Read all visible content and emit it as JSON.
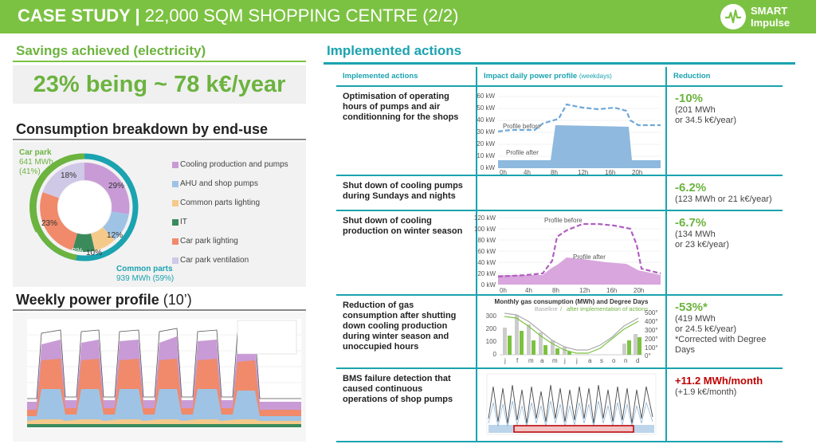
{
  "header": {
    "title_bold": "CASE STUDY |",
    "title_rest": " 22,000 SQM SHOPPING CENTRE (2/2)",
    "logo_line1": "SMART",
    "logo_line2": "Impulse",
    "bar_color": "#7cc242"
  },
  "savings": {
    "title": "Savings achieved (electricity)",
    "value": "23% being ~ 78 k€/year"
  },
  "breakdown": {
    "title": "Consumption breakdown by end-use",
    "carpark_label": "Car park",
    "carpark_value": "641 MWh",
    "carpark_pct": "(41%)",
    "common_label": "Common parts",
    "common_value": "939 MWh (59%)",
    "slice_labels": [
      "29%",
      "12%",
      "10%",
      "8%",
      "23%",
      "18%"
    ],
    "legend": [
      {
        "label": "Cooling production and pumps",
        "color": "#c89bd6"
      },
      {
        "label": "AHU and shop pumps",
        "color": "#9fc3e5"
      },
      {
        "label": "Common parts lighting",
        "color": "#f5c98a"
      },
      {
        "label": "IT",
        "color": "#3a8a5c"
      },
      {
        "label": "Car park lighting",
        "color": "#f08a6a"
      },
      {
        "label": "Car park ventilation",
        "color": "#cfc8e6"
      }
    ]
  },
  "weekly": {
    "title_bold": "Weekly power profile",
    "title_rest": " (10’)"
  },
  "actions": {
    "title": "Implemented actions",
    "col_action": "Implemented actions",
    "col_impact": "Impact daily power profile",
    "col_impact_sub": "(weekdays)",
    "col_reduction": "Reduction",
    "rows": [
      {
        "action": "Optimisation of operating hours of pumps and air conditionning for the shops",
        "pct": "-10%",
        "detail1": "(201 MWh",
        "detail2": "or 34.5 k€/year)",
        "detail3": "",
        "detail4": ""
      },
      {
        "action": "Shut down of cooling pumps during Sundays and nights",
        "pct": "-6.2%",
        "detail1": "(123 MWh or 21 k€/year)",
        "detail2": "",
        "detail3": "",
        "detail4": ""
      },
      {
        "action": "Shut down of cooling production on winter season",
        "pct": "-6.7%",
        "detail1": "(134 MWh",
        "detail2": "or 23 k€/year)",
        "detail3": "",
        "detail4": ""
      },
      {
        "action": "Reduction of gas consumption after shutting down cooling production during winter season and unoccupied hours",
        "pct": "-53%*",
        "detail1": "(419 MWh",
        "detail2": "or 24.5 k€/year)",
        "detail3": "*Corrected with Degree",
        "detail4": "Days"
      },
      {
        "action": "BMS failure detection that caused continuous operations of shop pumps",
        "pct": "+11.2 MWh/month",
        "detail1": "(+1.9 k€/month)",
        "detail2": "",
        "detail3": "",
        "detail4": ""
      }
    ]
  },
  "chart1": {
    "label_before": "Profile before",
    "label_after": "Profile after",
    "y_ticks": [
      "60 kW",
      "50 kW",
      "40 kW",
      "30 kW",
      "20 kW",
      "10 kW",
      "0 kW"
    ],
    "x_ticks": [
      "0h",
      "4h",
      "8h",
      "12h",
      "16h",
      "20h"
    ]
  },
  "chart2": {
    "label_before": "Profile before",
    "label_after": "Profile after",
    "y_ticks": [
      "120 kW",
      "100 kW",
      "80 kW",
      "60 kW",
      "40 kW",
      "20 kW",
      "0 kW"
    ],
    "x_ticks": [
      "0h",
      "4h",
      "8h",
      "12h",
      "16h",
      "20h"
    ]
  },
  "chart3": {
    "title": "Monthly gas consumption (MWh) and Degree Days",
    "legend_baseline": "Baseline",
    "legend_sep": " / ",
    "legend_after": "after implementation of actions",
    "y_left": [
      "300",
      "200",
      "100",
      "0"
    ],
    "y_right": [
      "500°",
      "400°",
      "300°",
      "200°",
      "100°",
      "0°"
    ],
    "months": [
      "j",
      "f",
      "m",
      "a",
      "m",
      "j",
      "j",
      "a",
      "s",
      "o",
      "n",
      "d"
    ]
  }
}
